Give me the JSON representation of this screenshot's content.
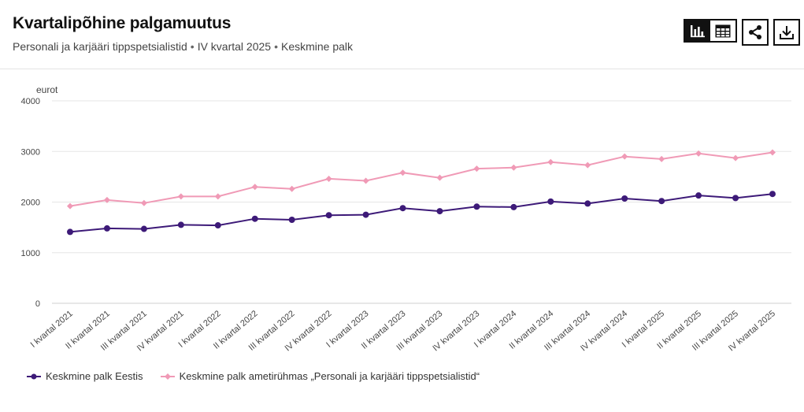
{
  "header": {
    "title": "Kvartalipõhine palgamuutus",
    "subtitle_parts": [
      "Personali ja karjääri tippspetsialistid",
      "IV kvartal 2025",
      "Keskmine palk"
    ],
    "separator": "•"
  },
  "toolbar": {
    "buttons": [
      {
        "name": "chart-view-button",
        "icon": "bar-chart-icon",
        "active": true
      },
      {
        "name": "table-view-button",
        "icon": "table-icon",
        "active": false
      },
      {
        "name": "share-button",
        "icon": "share-icon",
        "active": false
      },
      {
        "name": "download-button",
        "icon": "download-icon",
        "active": false
      }
    ]
  },
  "chart_data": {
    "type": "line",
    "title": "",
    "ylabel": "eurot",
    "xlabel": "",
    "ylim": [
      0,
      4000
    ],
    "yticks": [
      0,
      1000,
      2000,
      3000,
      4000
    ],
    "grid": true,
    "legend_position": "bottom-left",
    "categories": [
      "I kvartal 2021",
      "II kvartal 2021",
      "III kvartal 2021",
      "IV kvartal 2021",
      "I kvartal 2022",
      "II kvartal 2022",
      "III kvartal 2022",
      "IV kvartal 2022",
      "I kvartal 2023",
      "II kvartal 2023",
      "III kvartal 2023",
      "IV kvartal 2023",
      "I kvartal 2024",
      "II kvartal 2024",
      "III kvartal 2024",
      "IV kvartal 2024",
      "I kvartal 2025",
      "II kvartal 2025",
      "III kvartal 2025",
      "IV kvartal 2025"
    ],
    "series": [
      {
        "name": "Keskmine palk Eestis",
        "color": "#3d1a78",
        "marker": "circle",
        "values": [
          1410,
          1480,
          1470,
          1550,
          1540,
          1670,
          1650,
          1740,
          1750,
          1880,
          1820,
          1910,
          1900,
          2010,
          1970,
          2070,
          2020,
          2130,
          2080,
          2160
        ]
      },
      {
        "name": "Keskmine palk ametirühmas „Personali ja karjääri tippspetsialistid“",
        "color": "#f09ab6",
        "marker": "diamond",
        "values": [
          1920,
          2040,
          1980,
          2110,
          2110,
          2300,
          2260,
          2460,
          2420,
          2580,
          2480,
          2660,
          2680,
          2790,
          2730,
          2900,
          2850,
          2960,
          2870,
          2980
        ]
      }
    ]
  }
}
